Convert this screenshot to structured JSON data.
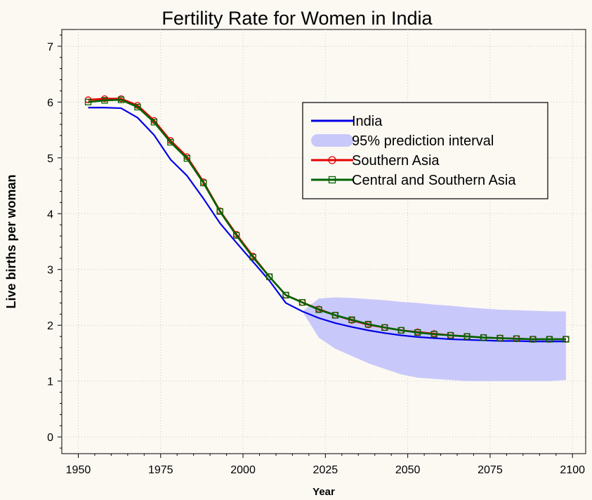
{
  "chart_data": {
    "type": "line",
    "title": "Fertility Rate for Women in India",
    "xlabel": "Year",
    "ylabel": "Live births per woman",
    "xlim": [
      1945,
      2104
    ],
    "ylim": [
      -0.3,
      7.3
    ],
    "xticks": [
      1950,
      1975,
      2000,
      2025,
      2050,
      2075,
      2100
    ],
    "yticks": [
      0,
      1,
      2,
      3,
      4,
      5,
      6,
      7
    ],
    "grid": true,
    "legend_position": "top-right",
    "colors": {
      "india": "#0000e6",
      "interval": "#c8c8fa",
      "southern_asia": "#e60000",
      "central_southern_asia": "#006400",
      "background": "#fcf9f3"
    },
    "series": [
      {
        "name": "India",
        "marker": "none",
        "x": [
          1953,
          1958,
          1963,
          1968,
          1973,
          1978,
          1983,
          1988,
          1993,
          1998,
          2003,
          2008,
          2013,
          2018,
          2023,
          2028,
          2033,
          2038,
          2043,
          2048,
          2053,
          2058,
          2063,
          2068,
          2073,
          2078,
          2083,
          2088,
          2093,
          2098
        ],
        "y": [
          5.9,
          5.9,
          5.89,
          5.72,
          5.41,
          4.97,
          4.68,
          4.27,
          3.83,
          3.48,
          3.14,
          2.8,
          2.4,
          2.25,
          2.13,
          2.04,
          1.97,
          1.91,
          1.86,
          1.82,
          1.79,
          1.77,
          1.75,
          1.74,
          1.73,
          1.72,
          1.72,
          1.71,
          1.71,
          1.71
        ]
      },
      {
        "name": "95% prediction interval",
        "type": "band",
        "x": [
          2018,
          2023,
          2028,
          2033,
          2038,
          2043,
          2048,
          2053,
          2058,
          2063,
          2068,
          2073,
          2078,
          2083,
          2088,
          2093,
          2098
        ],
        "lower": [
          2.25,
          1.78,
          1.58,
          1.45,
          1.32,
          1.22,
          1.12,
          1.06,
          1.04,
          1.02,
          1.0,
          1.0,
          1.0,
          1.0,
          1.0,
          1.0,
          1.02
        ],
        "upper": [
          2.25,
          2.48,
          2.5,
          2.49,
          2.47,
          2.45,
          2.42,
          2.4,
          2.37,
          2.35,
          2.32,
          2.3,
          2.28,
          2.27,
          2.26,
          2.25,
          2.25
        ]
      },
      {
        "name": "Southern Asia",
        "marker": "circle",
        "x": [
          1953,
          1958,
          1963,
          1968,
          1973,
          1978,
          1983,
          1988,
          1993,
          1998,
          2003,
          2008,
          2013,
          2018,
          2023,
          2028,
          2033,
          2038,
          2043,
          2048,
          2053,
          2058,
          2063,
          2068,
          2073,
          2078,
          2083,
          2088,
          2093,
          2098
        ],
        "y": [
          6.04,
          6.06,
          6.06,
          5.94,
          5.67,
          5.31,
          5.02,
          4.57,
          4.05,
          3.63,
          3.24,
          2.87,
          2.54,
          2.41,
          2.29,
          2.18,
          2.09,
          2.01,
          1.96,
          1.91,
          1.88,
          1.85,
          1.82,
          1.8,
          1.78,
          1.77,
          1.76,
          1.75,
          1.75,
          1.75
        ]
      },
      {
        "name": "Central and Southern Asia",
        "marker": "square",
        "x": [
          1953,
          1958,
          1963,
          1968,
          1973,
          1978,
          1983,
          1988,
          1993,
          1998,
          2003,
          2008,
          2013,
          2018,
          2023,
          2028,
          2033,
          2038,
          2043,
          2048,
          2053,
          2058,
          2063,
          2068,
          2073,
          2078,
          2083,
          2088,
          2093,
          2098
        ],
        "y": [
          6.0,
          6.03,
          6.04,
          5.91,
          5.64,
          5.28,
          4.99,
          4.55,
          4.04,
          3.61,
          3.22,
          2.87,
          2.54,
          2.41,
          2.28,
          2.18,
          2.1,
          2.02,
          1.96,
          1.91,
          1.87,
          1.84,
          1.82,
          1.8,
          1.78,
          1.77,
          1.76,
          1.75,
          1.75,
          1.75
        ]
      }
    ]
  }
}
